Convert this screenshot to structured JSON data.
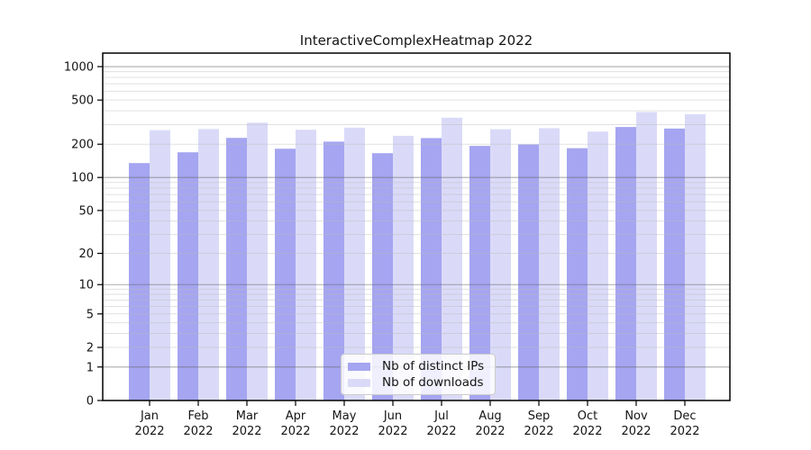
{
  "chart_data": {
    "type": "bar",
    "title": "InteractiveComplexHeatmap 2022",
    "categories": [
      "Jan",
      "Feb",
      "Mar",
      "Apr",
      "May",
      "Jun",
      "Jul",
      "Aug",
      "Sep",
      "Oct",
      "Nov",
      "Dec"
    ],
    "x_tick_second_line": "2022",
    "series": [
      {
        "name": "Nb of distinct IPs",
        "color": "#a5a5f1",
        "values": [
          135,
          169,
          228,
          182,
          211,
          166,
          227,
          193,
          199,
          184,
          286,
          277
        ]
      },
      {
        "name": "Nb of downloads",
        "color": "#dadaf8",
        "values": [
          268,
          274,
          313,
          270,
          282,
          238,
          347,
          273,
          279,
          260,
          390,
          373
        ]
      }
    ],
    "ylabel": "",
    "xlabel": "",
    "yscale": "log1p",
    "ylim": [
      0,
      1323
    ],
    "yticks": [
      1000,
      500,
      200,
      100,
      50,
      20,
      10,
      5,
      2,
      1,
      0
    ],
    "grid": {
      "on": true,
      "major_values": [
        1,
        10,
        100,
        1000
      ],
      "minor_values": [
        2,
        3,
        4,
        5,
        6,
        7,
        8,
        9,
        20,
        30,
        40,
        50,
        60,
        70,
        80,
        90,
        200,
        300,
        400,
        500,
        600,
        700,
        800,
        900
      ],
      "major_color": "#666666",
      "minor_color": "#bbbbbb"
    },
    "legend_position": "lower center",
    "axis_color": "#000000",
    "text_color": "#151515"
  }
}
